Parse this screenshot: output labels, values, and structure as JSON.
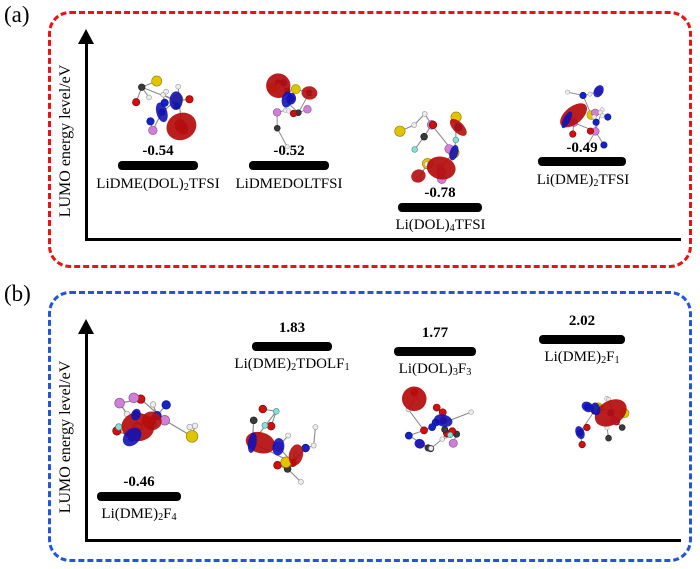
{
  "figure": {
    "panels": [
      {
        "tag": "(a)",
        "border_color": "#ee1111",
        "axis_label": "LUMO energy level/eV",
        "items": [
          {
            "value": "-0.54",
            "label": "LiDME(DOL)2TFSI",
            "label_parts": [
              {
                "t": "LiDME(DOL)"
              },
              {
                "s": "2"
              },
              {
                "t": "TFSI"
              }
            ]
          },
          {
            "value": "-0.52",
            "label": "LiDMEDOLTFSI",
            "label_parts": [
              {
                "t": "LiDMEDOLTFSI"
              }
            ]
          },
          {
            "value": "-0.78",
            "label": "Li(DOL)4TFSI",
            "label_parts": [
              {
                "t": "Li(DOL)"
              },
              {
                "s": "4"
              },
              {
                "t": "TFSI"
              }
            ]
          },
          {
            "value": "-0.49",
            "label": "Li(DME)2TFSI",
            "label_parts": [
              {
                "t": "Li(DME)"
              },
              {
                "s": "2"
              },
              {
                "t": "TFSI"
              }
            ]
          }
        ]
      },
      {
        "tag": "(b)",
        "border_color": "#2255dd",
        "axis_label": "LUMO energy level/eV",
        "items": [
          {
            "value": "-0.46",
            "label": "Li(DME)2F4",
            "label_parts": [
              {
                "t": "Li(DME)"
              },
              {
                "s": "2"
              },
              {
                "t": "F"
              },
              {
                "s": "4"
              }
            ]
          },
          {
            "value": "1.83",
            "label": "Li(DME)2TDOLF1",
            "label_parts": [
              {
                "t": "Li(DME)"
              },
              {
                "s": "2"
              },
              {
                "t": "TDOLF"
              },
              {
                "s": "1"
              }
            ]
          },
          {
            "value": "1.77",
            "label": "Li(DOL)3F3",
            "label_parts": [
              {
                "t": "Li(DOL)"
              },
              {
                "s": "3"
              },
              {
                "t": "F"
              },
              {
                "s": "3"
              }
            ]
          },
          {
            "value": "2.02",
            "label": "Li(DME)2F1",
            "label_parts": [
              {
                "t": "Li(DME)"
              },
              {
                "s": "2"
              },
              {
                "t": "F"
              },
              {
                "s": "1"
              }
            ]
          }
        ]
      }
    ]
  },
  "chart_data": [
    {
      "type": "bar",
      "title": "(a) LUMO energy levels of Li-salt solvation complexes",
      "xlabel": "",
      "ylabel": "LUMO energy level/eV",
      "categories": [
        "LiDME(DOL)2TFSI",
        "LiDMEDOLTFSI",
        "Li(DOL)4TFSI",
        "Li(DME)2TFSI"
      ],
      "values": [
        -0.54,
        -0.52,
        -0.78,
        -0.49
      ],
      "legend": [],
      "grid": false
    },
    {
      "type": "bar",
      "title": "(b) LUMO energy levels of fluorinated complexes",
      "xlabel": "",
      "ylabel": "LUMO energy level/eV",
      "categories": [
        "Li(DME)2F4",
        "Li(DME)2TDOLF1",
        "Li(DOL)3F3",
        "Li(DME)2F1"
      ],
      "values": [
        -0.46,
        1.83,
        1.77,
        2.02
      ],
      "legend": [],
      "grid": false
    }
  ]
}
